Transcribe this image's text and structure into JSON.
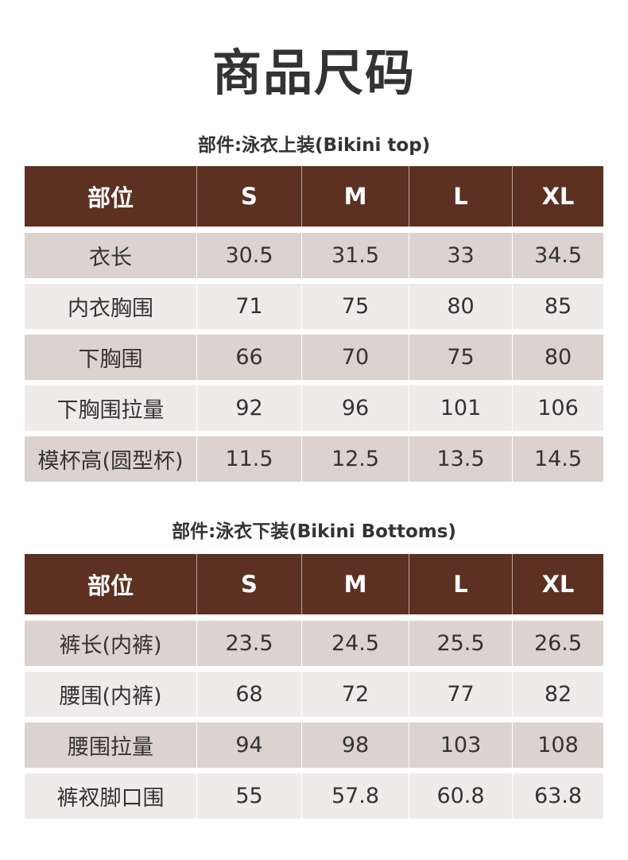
{
  "title": "商品尺码",
  "colors": {
    "header_bg": "#5c3121",
    "row_shade": "#dcd3cf",
    "row_light": "#efebea"
  },
  "top": {
    "label": "部件:泳衣上装(Bikini top)",
    "headers": [
      "部位",
      "S",
      "M",
      "L",
      "XL"
    ],
    "rows": [
      [
        "衣长",
        "30.5",
        "31.5",
        "33",
        "34.5"
      ],
      [
        "内衣胸围",
        "71",
        "75",
        "80",
        "85"
      ],
      [
        "下胸围",
        "66",
        "70",
        "75",
        "80"
      ],
      [
        "下胸围拉量",
        "92",
        "96",
        "101",
        "106"
      ],
      [
        "模杯高(圆型杯)",
        "11.5",
        "12.5",
        "13.5",
        "14.5"
      ]
    ]
  },
  "bottoms": {
    "label": "部件:泳衣下装(Bikini Bottoms)",
    "headers": [
      "部位",
      "S",
      "M",
      "L",
      "XL"
    ],
    "rows": [
      [
        "裤长(内裤)",
        "23.5",
        "24.5",
        "25.5",
        "26.5"
      ],
      [
        "腰围(内裤)",
        "68",
        "72",
        "77",
        "82"
      ],
      [
        "腰围拉量",
        "94",
        "98",
        "103",
        "108"
      ],
      [
        "裤衩脚口围",
        "55",
        "57.8",
        "60.8",
        "63.8"
      ]
    ]
  }
}
